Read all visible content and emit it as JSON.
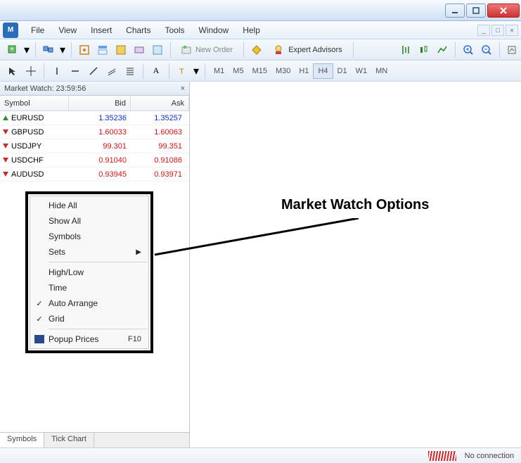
{
  "window": {
    "title": ""
  },
  "menu": {
    "file": "File",
    "view": "View",
    "insert": "Insert",
    "charts": "Charts",
    "tools": "Tools",
    "window": "Window",
    "help": "Help"
  },
  "toolbar": {
    "newOrder": "New Order",
    "expertAdvisors": "Expert Advisors"
  },
  "timeframes": [
    "M1",
    "M5",
    "M15",
    "M30",
    "H1",
    "H4",
    "D1",
    "W1",
    "MN"
  ],
  "tfActive": "H4",
  "marketWatch": {
    "title": "Market Watch: 23:59:56",
    "cols": {
      "symbol": "Symbol",
      "bid": "Bid",
      "ask": "Ask"
    },
    "rows": [
      {
        "sym": "EURUSD",
        "bid": "1.35236",
        "ask": "1.35257",
        "dir": "up",
        "cls": "blue"
      },
      {
        "sym": "GBPUSD",
        "bid": "1.60033",
        "ask": "1.60063",
        "dir": "down",
        "cls": "red"
      },
      {
        "sym": "USDJPY",
        "bid": "99.301",
        "ask": "99.351",
        "dir": "down",
        "cls": "red"
      },
      {
        "sym": "USDCHF",
        "bid": "0.91040",
        "ask": "0.91086",
        "dir": "down",
        "cls": "red"
      },
      {
        "sym": "AUDUSD",
        "bid": "0.93945",
        "ask": "0.93971",
        "dir": "down",
        "cls": "red"
      }
    ],
    "tabs": {
      "symbols": "Symbols",
      "tickChart": "Tick Chart"
    }
  },
  "context": {
    "hideAll": "Hide All",
    "showAll": "Show All",
    "symbols": "Symbols",
    "sets": "Sets",
    "highLow": "High/Low",
    "time": "Time",
    "autoArrange": "Auto Arrange",
    "grid": "Grid",
    "popup": "Popup Prices",
    "popupKey": "F10"
  },
  "annotation": "Market Watch Options",
  "status": {
    "msg": "No connection"
  }
}
